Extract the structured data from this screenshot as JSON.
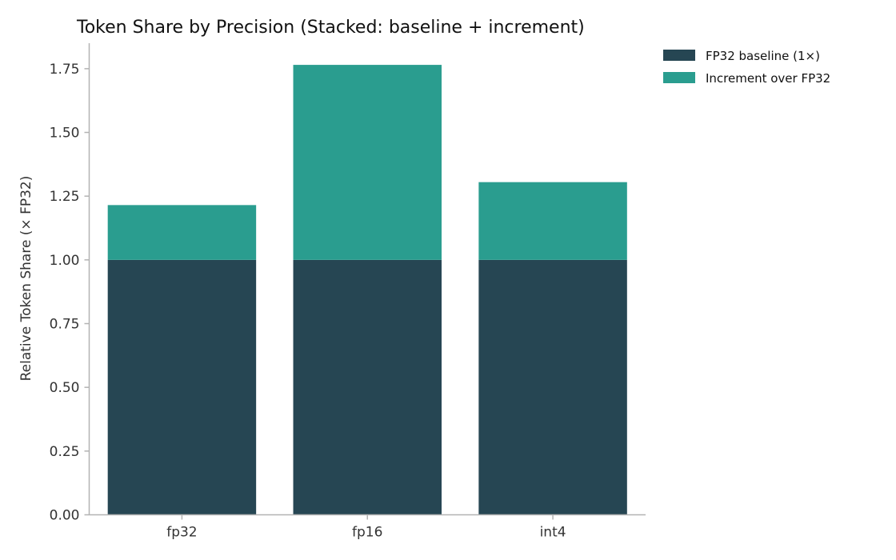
{
  "chart_data": {
    "type": "bar",
    "stacked": true,
    "title": "Token Share by Precision (Stacked: baseline + increment)",
    "xlabel": "",
    "ylabel": "Relative Token Share (× FP32)",
    "categories": [
      "fp32",
      "fp16",
      "int4"
    ],
    "series": [
      {
        "name": "FP32 baseline (1×)",
        "color": "#264653",
        "values": [
          1.0,
          1.0,
          1.0
        ]
      },
      {
        "name": "Increment over FP32",
        "color": "#2a9d8f",
        "values": [
          0.215,
          0.765,
          0.305
        ]
      }
    ],
    "ylim": [
      0,
      1.85
    ],
    "yticks": [
      0.0,
      0.25,
      0.5,
      0.75,
      1.0,
      1.25,
      1.5,
      1.75
    ],
    "ytick_labels": [
      "0.00",
      "0.25",
      "0.50",
      "0.75",
      "1.00",
      "1.25",
      "1.50",
      "1.75"
    ],
    "grid": false,
    "legend_position": "top-right, outside plot area"
  }
}
